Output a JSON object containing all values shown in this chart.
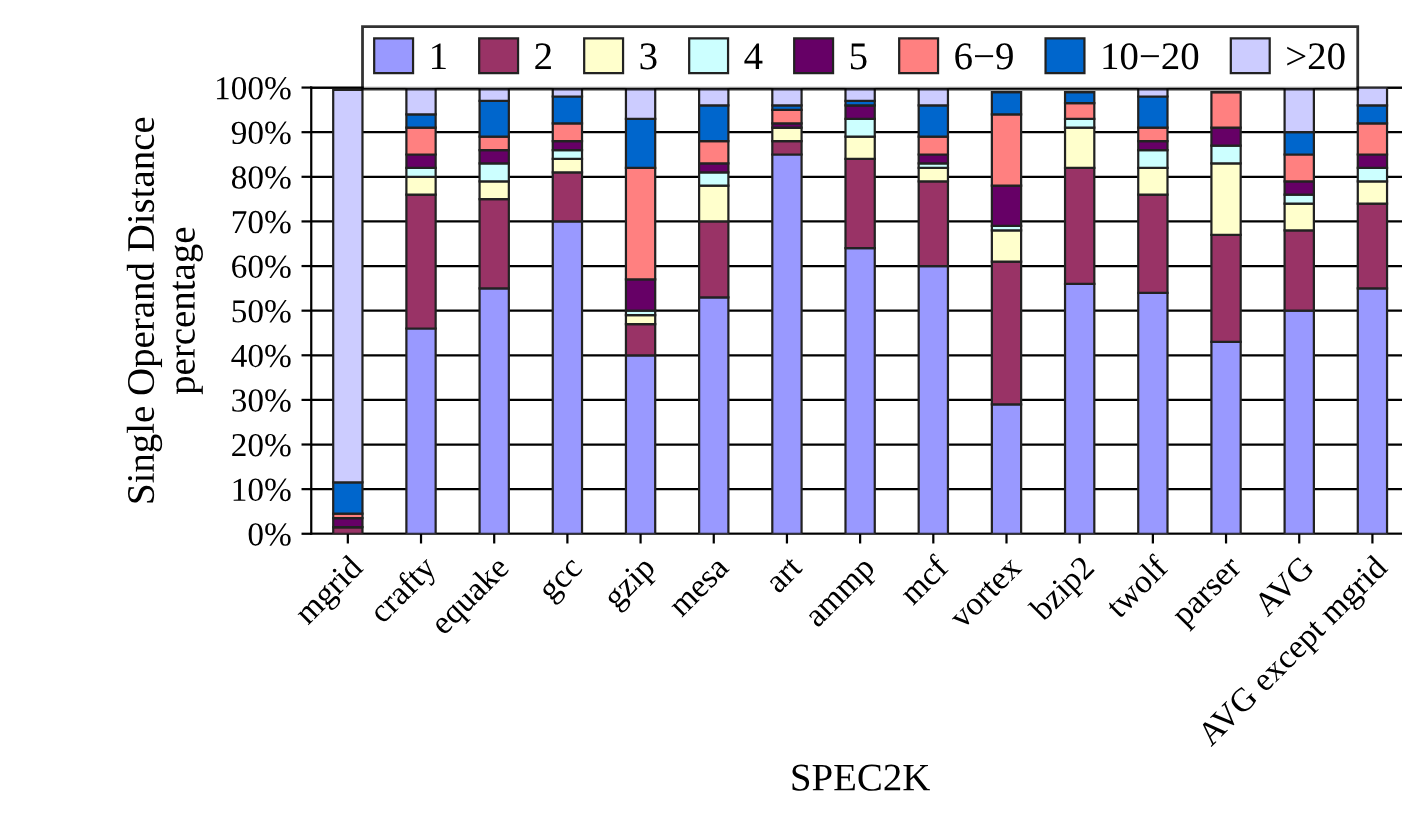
{
  "chart_data": {
    "type": "bar",
    "stacked": true,
    "xlabel": "SPEC2K",
    "ylabel": "Single Operand Distance\npercentage",
    "categories": [
      "mgrid",
      "crafty",
      "equake",
      "gcc",
      "gzip",
      "mesa",
      "art",
      "ammp",
      "mcf",
      "vortex",
      "bzip2",
      "twolf",
      "parser",
      "AVG",
      "AVG except mgrid"
    ],
    "series": [
      {
        "name": "1",
        "color": "#9999ff",
        "values": [
          null,
          46,
          55,
          70,
          40,
          53,
          85,
          64,
          60,
          29,
          56,
          54,
          43,
          50,
          55
        ]
      },
      {
        "name": "2",
        "color": "#993366",
        "values": [
          1.5,
          30,
          20,
          11,
          7,
          17,
          3,
          20,
          19,
          32,
          26,
          22,
          24,
          18,
          19
        ]
      },
      {
        "name": "3",
        "color": "#ffffcc",
        "values": [
          null,
          4,
          4,
          3,
          2,
          8,
          3,
          5,
          3,
          7,
          9,
          6,
          16,
          6,
          5
        ]
      },
      {
        "name": "4",
        "color": "#ccffff",
        "values": [
          null,
          2,
          4,
          2,
          1,
          3,
          null,
          4,
          1,
          1,
          2,
          4,
          4,
          2,
          3
        ]
      },
      {
        "name": "5",
        "color": "#660066",
        "values": [
          2,
          3,
          3,
          2,
          7,
          2,
          1,
          3,
          2,
          9,
          null,
          2,
          4,
          3,
          3
        ]
      },
      {
        "name": "6−9",
        "color": "#ff8080",
        "values": [
          1,
          6,
          3,
          4,
          25,
          5,
          3,
          null,
          4,
          16,
          3.5,
          3,
          8,
          6,
          7
        ]
      },
      {
        "name": "10−20",
        "color": "#0066cc",
        "values": [
          7,
          3,
          8,
          6,
          11,
          8,
          1,
          1,
          7,
          5,
          2.5,
          7,
          null,
          5,
          4
        ]
      },
      {
        "name": ">20",
        "color": "#ccccff",
        "values": [
          88,
          6,
          3,
          2,
          7,
          4,
          4,
          3,
          4,
          null,
          null,
          2,
          null,
          10,
          4
        ]
      }
    ],
    "ylim": [
      0,
      100
    ],
    "yticks": [
      {
        "value": 0,
        "label": "0%"
      },
      {
        "value": 10,
        "label": "10%"
      },
      {
        "value": 20,
        "label": "20%"
      },
      {
        "value": 30,
        "label": "30%"
      },
      {
        "value": 40,
        "label": "40%"
      },
      {
        "value": 50,
        "label": "50%"
      },
      {
        "value": 60,
        "label": "60%"
      },
      {
        "value": 70,
        "label": "70%"
      },
      {
        "value": 80,
        "label": "80%"
      },
      {
        "value": 90,
        "label": "90%"
      },
      {
        "value": 100,
        "label": "100%"
      }
    ],
    "grid": "y",
    "legend": "top"
  }
}
